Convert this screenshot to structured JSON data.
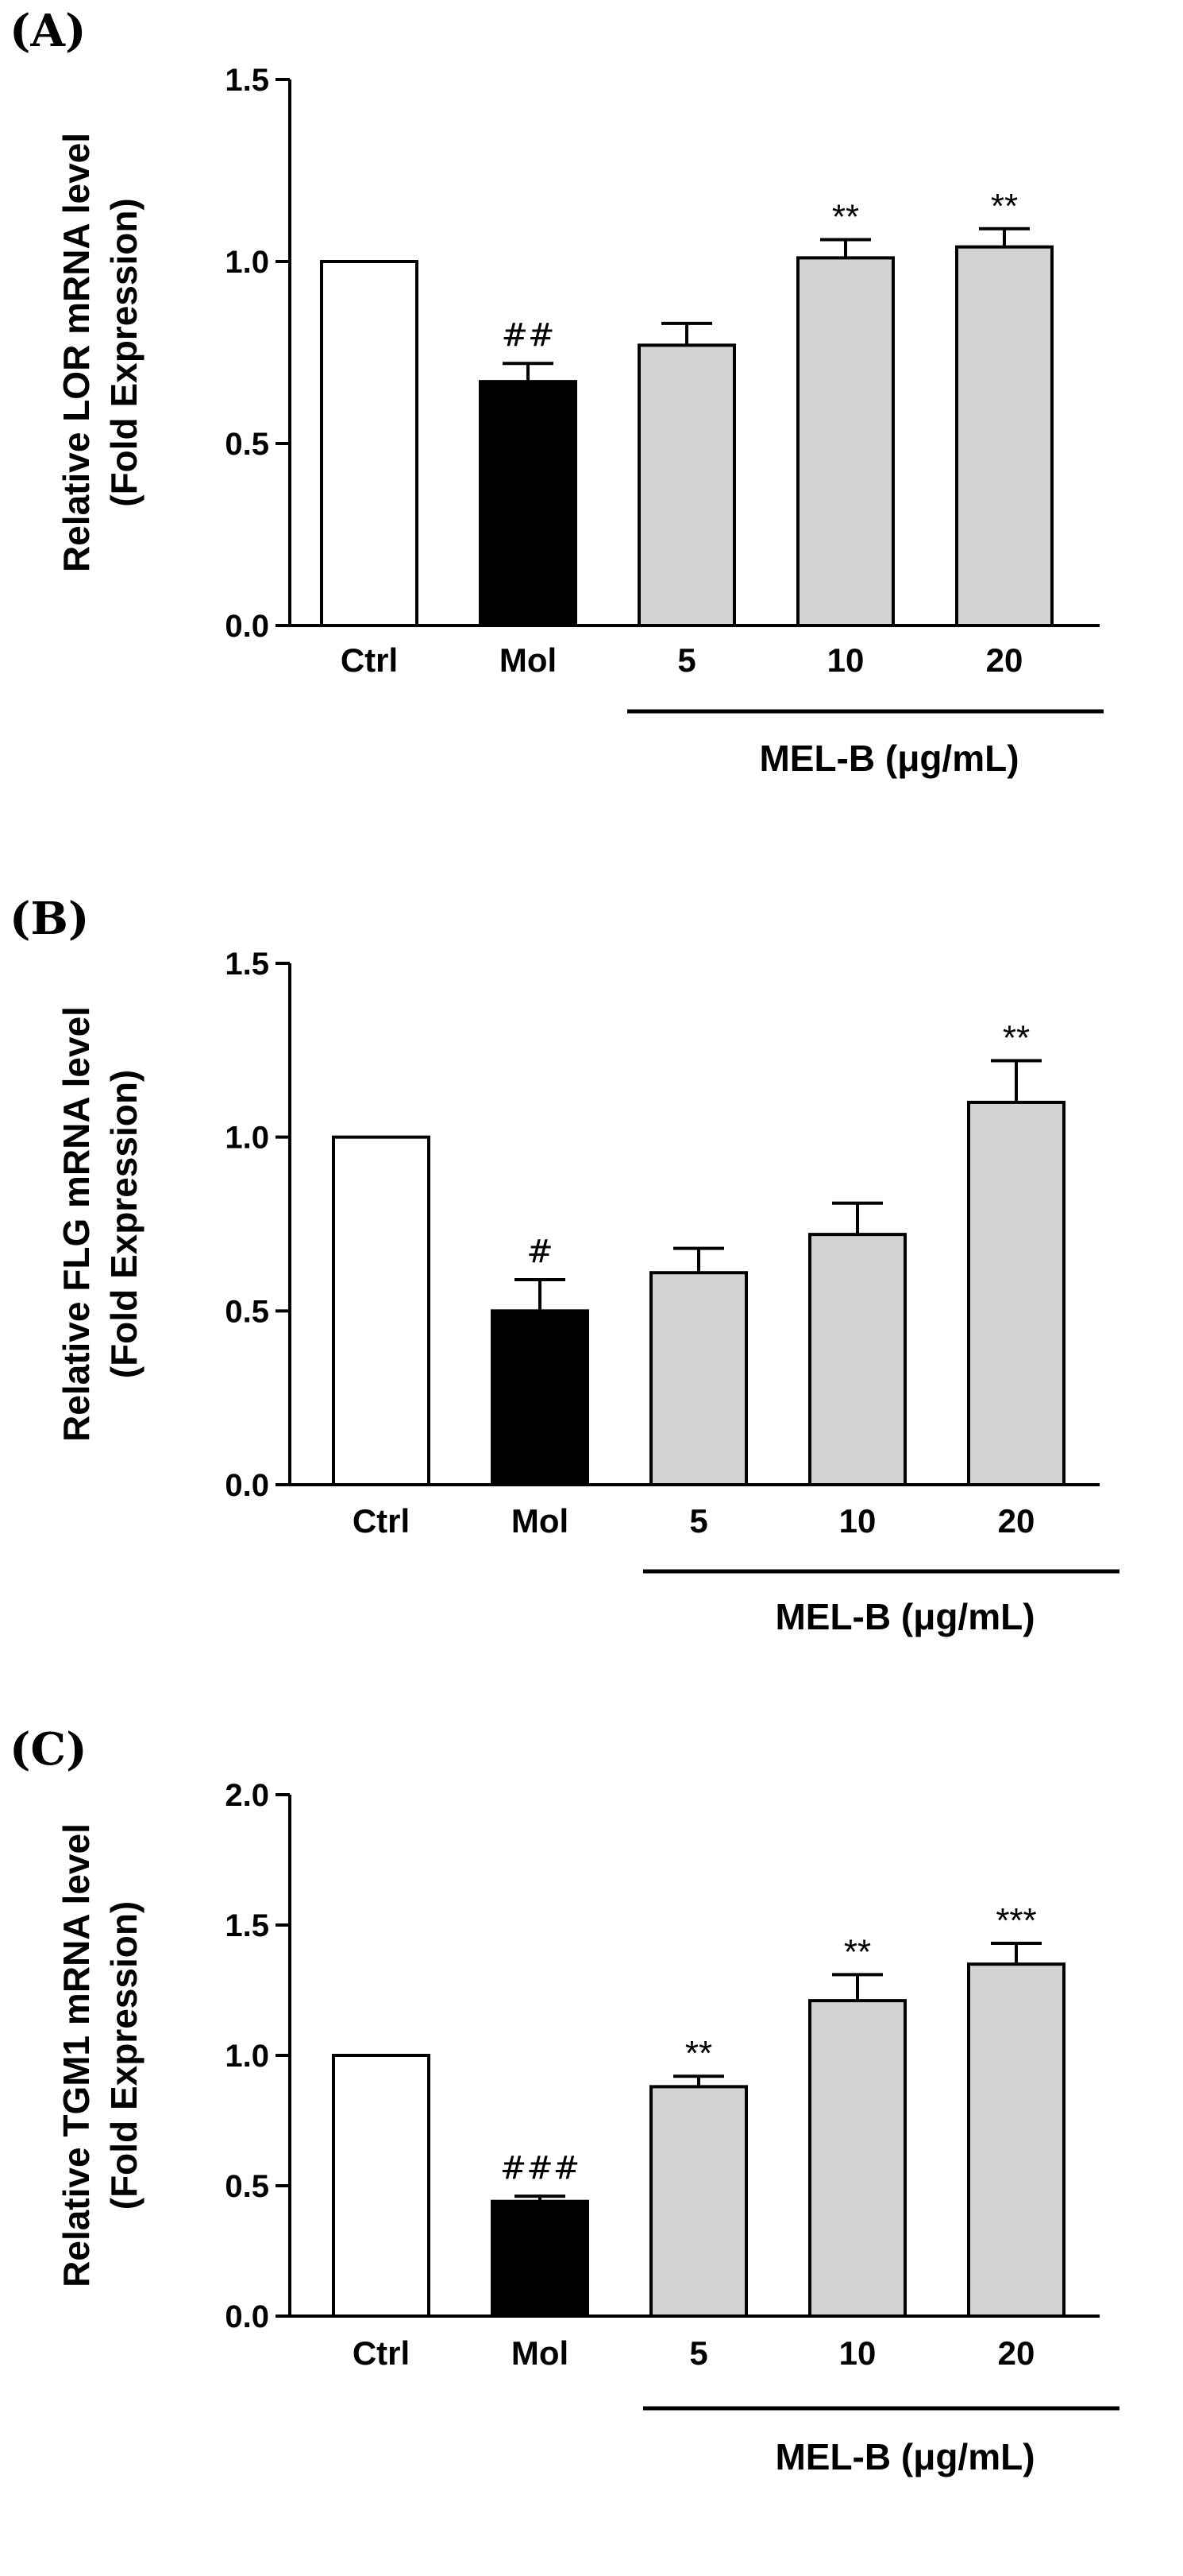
{
  "colors": {
    "Ctrl": "#ffffff",
    "Mol": "#000000",
    "MEL-B": "#d3d3d3",
    "stroke": "#000000"
  },
  "chart_data": [
    {
      "type": "bar",
      "panel_label": "(A)",
      "ylabel": [
        "Relative LOR mRNA level",
        "(Fold Expression)"
      ],
      "categories": [
        "Ctrl",
        "Mol",
        "5",
        "10",
        "20"
      ],
      "values": [
        1.0,
        0.67,
        0.77,
        1.01,
        1.04
      ],
      "errors": [
        0.0,
        0.05,
        0.06,
        0.05,
        0.05
      ],
      "annotations": [
        "",
        "##",
        "",
        "**",
        "**"
      ],
      "ylim": [
        0,
        1.5
      ],
      "yticks": [
        0.0,
        0.5,
        1.0,
        1.5
      ],
      "ytick_labels": [
        "0.0",
        "0.5",
        "1.0",
        "1.5"
      ],
      "group_label": "MEL-B (μg/mL)"
    },
    {
      "type": "bar",
      "panel_label": "(B)",
      "ylabel": [
        "Relative FLG mRNA level",
        "(Fold Expression)"
      ],
      "categories": [
        "Ctrl",
        "Mol",
        "5",
        "10",
        "20"
      ],
      "values": [
        1.0,
        0.5,
        0.61,
        0.72,
        1.1
      ],
      "errors": [
        0.0,
        0.09,
        0.07,
        0.09,
        0.12
      ],
      "annotations": [
        "",
        "#",
        "",
        "",
        "**"
      ],
      "ylim": [
        0,
        1.5
      ],
      "yticks": [
        0.0,
        0.5,
        1.0,
        1.5
      ],
      "ytick_labels": [
        "0.0",
        "0.5",
        "1.0",
        "1.5"
      ],
      "group_label": "MEL-B (μg/mL)"
    },
    {
      "type": "bar",
      "panel_label": "(C)",
      "ylabel": [
        "Relative TGM1 mRNA level",
        "(Fold Expression)"
      ],
      "categories": [
        "Ctrl",
        "Mol",
        "5",
        "10",
        "20"
      ],
      "values": [
        1.0,
        0.44,
        0.88,
        1.21,
        1.35
      ],
      "errors": [
        0.0,
        0.02,
        0.04,
        0.1,
        0.08
      ],
      "annotations": [
        "",
        "###",
        "**",
        "**",
        "***"
      ],
      "ylim": [
        0,
        2.0
      ],
      "yticks": [
        0.0,
        0.5,
        1.0,
        1.5,
        2.0
      ],
      "ytick_labels": [
        "0.0",
        "0.5",
        "1.0",
        "1.5",
        "2.0"
      ],
      "group_label": "MEL-B (μg/mL)"
    }
  ]
}
